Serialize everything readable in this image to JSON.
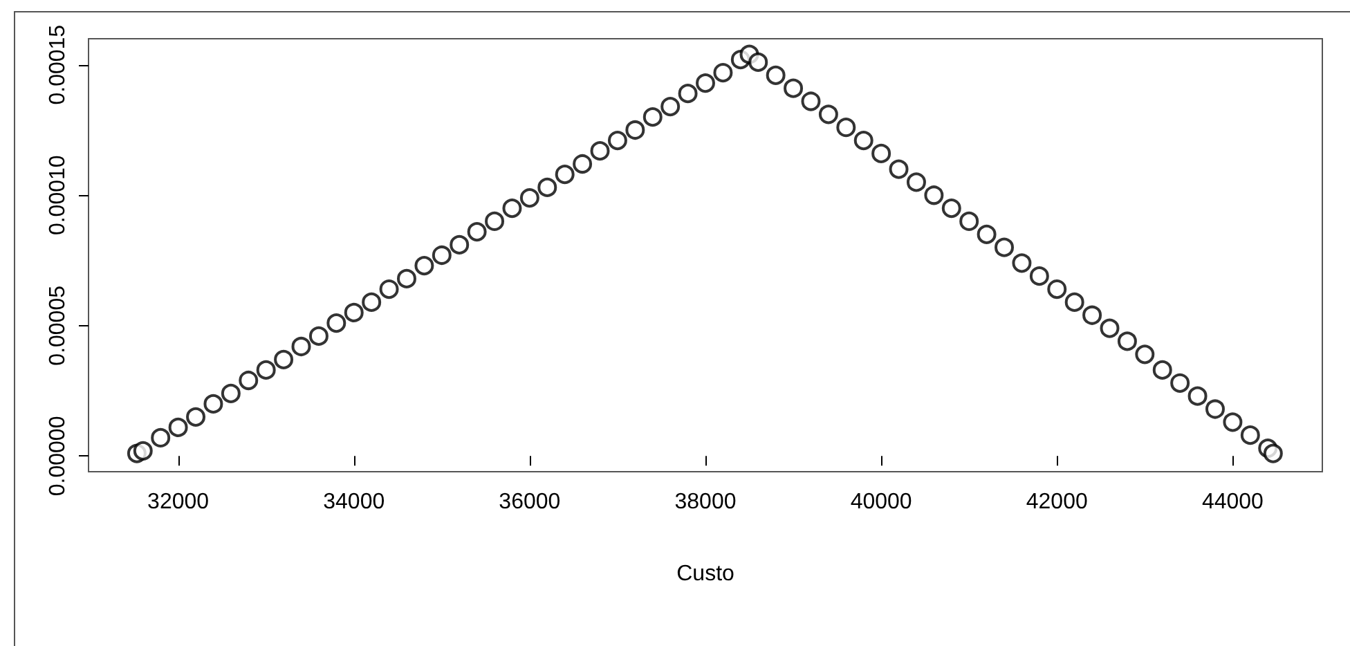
{
  "chart_data": {
    "type": "scatter",
    "xlabel": "Custo",
    "marker": "circle",
    "xlim": [
      30980,
      45020
    ],
    "ylim": [
      -6e-06,
      0.00016
    ],
    "xticks": [
      32000,
      34000,
      36000,
      38000,
      40000,
      42000,
      44000
    ],
    "yticks": [
      {
        "value": 0,
        "label": "0.00000"
      },
      {
        "value": 5e-05,
        "label": "0.00005"
      },
      {
        "value": 0.0001,
        "label": "0.00010"
      },
      {
        "value": 0.00015,
        "label": "0.00015"
      }
    ],
    "series": [
      {
        "color": "#000000",
        "x": [
          31530,
          31600,
          31800,
          32000,
          32200,
          32400,
          32600,
          32800,
          33000,
          33200,
          33400,
          33600,
          33800,
          34000,
          34200,
          34400,
          34600,
          34800,
          35000,
          35200,
          35400,
          35600,
          35800,
          36000,
          36200,
          36400,
          36600,
          36800,
          37000,
          37200,
          37400,
          37600,
          37800,
          38000,
          38200,
          38400,
          38500,
          38600,
          38800,
          39000,
          39200,
          39400,
          39600,
          39800,
          40000,
          40200,
          40400,
          40600,
          40800,
          41000,
          41200,
          41400,
          41600,
          41800,
          42000,
          42200,
          42400,
          42600,
          42800,
          43000,
          43200,
          43400,
          43600,
          43800,
          44000,
          44200,
          44400,
          44460
        ],
        "values": [
          1e-06,
          2e-06,
          7e-06,
          1.1e-05,
          1.5e-05,
          2e-05,
          2.4e-05,
          2.9e-05,
          3.3e-05,
          3.7e-05,
          4.2e-05,
          4.6e-05,
          5.1e-05,
          5.5e-05,
          5.9e-05,
          6.4e-05,
          6.8e-05,
          7.3e-05,
          7.7e-05,
          8.1e-05,
          8.6e-05,
          9e-05,
          9.5e-05,
          9.9e-05,
          0.000103,
          0.000108,
          0.000112,
          0.000117,
          0.000121,
          0.000125,
          0.00013,
          0.000134,
          0.000139,
          0.000143,
          0.000147,
          0.000152,
          0.000154,
          0.000151,
          0.000146,
          0.000141,
          0.000136,
          0.000131,
          0.000126,
          0.000121,
          0.000116,
          0.00011,
          0.000105,
          0.0001,
          9.5e-05,
          9e-05,
          8.5e-05,
          8e-05,
          7.4e-05,
          6.9e-05,
          6.4e-05,
          5.9e-05,
          5.4e-05,
          4.9e-05,
          4.4e-05,
          3.9e-05,
          3.3e-05,
          2.8e-05,
          2.3e-05,
          1.8e-05,
          1.3e-05,
          8e-06,
          3e-06,
          1e-06
        ]
      }
    ]
  }
}
